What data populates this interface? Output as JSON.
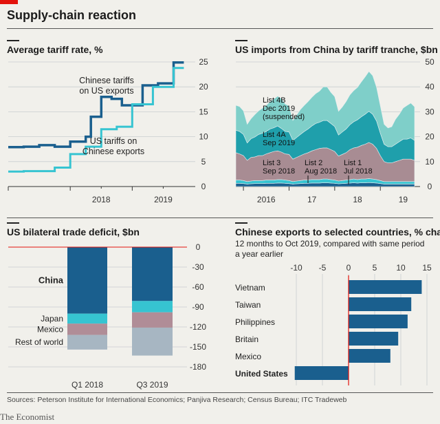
{
  "title": "Supply-chain reaction",
  "source": "Sources: Peterson Institute for International Economics; Panjiva Research; Census Bureau; ITC Tradeweb",
  "brand": "The Economist",
  "chart_data": [
    {
      "type": "line",
      "title": "Average tariff rate, %",
      "x_ticks": [
        "2018",
        "2019"
      ],
      "ylim": [
        0,
        25
      ],
      "y_ticks": [
        0,
        5,
        10,
        15,
        20,
        25
      ],
      "y_axis_side": "right",
      "grid": true,
      "annotations": [
        "Chinese tariffs on US exports",
        "US tariffs on Chinese exports"
      ],
      "series": [
        {
          "label": "Chinese tariffs on US exports",
          "color": "#1a5f8e",
          "x": [
            "2017-01-01",
            "2017-04-01",
            "2017-04-01",
            "2017-07-01",
            "2017-07-01",
            "2017-10-01",
            "2017-10-01",
            "2018-01-01",
            "2018-01-01",
            "2018-04-01",
            "2018-04-01",
            "2018-05-01",
            "2018-05-01",
            "2018-07-01",
            "2018-07-01",
            "2018-09-01",
            "2018-09-01",
            "2018-11-01",
            "2018-11-01",
            "2019-01-01",
            "2019-01-01",
            "2019-03-01",
            "2019-03-01",
            "2019-06-01",
            "2019-06-01",
            "2019-09-01",
            "2019-09-01",
            "2019-10-31"
          ],
          "y": [
            7.9,
            7.9,
            8.0,
            8.0,
            8.3,
            8.3,
            8.0,
            8.0,
            9.0,
            9.0,
            10.0,
            10.0,
            14.0,
            14.0,
            18.0,
            18.0,
            17.6,
            17.6,
            16.3,
            16.3,
            16.3,
            16.3,
            20.3,
            20.3,
            20.7,
            20.7,
            24.9,
            24.9
          ]
        },
        {
          "label": "US tariffs on Chinese exports",
          "color": "#36c4d1",
          "x": [
            "2017-01-01",
            "2017-04-01",
            "2017-04-01",
            "2017-10-01",
            "2017-10-01",
            "2018-01-01",
            "2018-01-01",
            "2018-04-01",
            "2018-04-01",
            "2018-07-01",
            "2018-07-01",
            "2018-10-01",
            "2018-10-01",
            "2019-01-01",
            "2019-01-01",
            "2019-05-01",
            "2019-05-01",
            "2019-09-01",
            "2019-09-01",
            "2019-10-31"
          ],
          "y": [
            3.0,
            3.0,
            3.1,
            3.1,
            3.8,
            3.8,
            6.5,
            6.5,
            8.0,
            8.0,
            11.5,
            11.5,
            12.0,
            12.0,
            16.5,
            16.5,
            20.0,
            20.0,
            23.8,
            23.8
          ]
        }
      ]
    },
    {
      "type": "area",
      "title": "US imports from China by tariff tranche, $bn",
      "x_ticks": [
        "2016",
        "17",
        "18",
        "19"
      ],
      "ylim": [
        0,
        50
      ],
      "y_ticks": [
        0,
        10,
        20,
        30,
        40,
        50
      ],
      "y_axis_side": "right",
      "grid": true,
      "x": [
        "2015-11",
        "2015-12",
        "2016-01",
        "2016-02",
        "2016-03",
        "2016-04",
        "2016-05",
        "2016-06",
        "2016-07",
        "2016-08",
        "2016-09",
        "2016-10",
        "2016-11",
        "2016-12",
        "2017-01",
        "2017-02",
        "2017-03",
        "2017-04",
        "2017-05",
        "2017-06",
        "2017-07",
        "2017-08",
        "2017-09",
        "2017-10",
        "2017-11",
        "2017-12",
        "2018-01",
        "2018-02",
        "2018-03",
        "2018-04",
        "2018-05",
        "2018-06",
        "2018-07",
        "2018-08",
        "2018-09",
        "2018-10",
        "2018-11",
        "2018-12",
        "2019-01",
        "2019-02",
        "2019-03",
        "2019-04",
        "2019-05",
        "2019-06",
        "2019-07",
        "2019-08",
        "2019-09",
        "2019-10"
      ],
      "series": [
        {
          "label": "List 1 Jul 2018",
          "color": "#1a5f8e",
          "values": [
            1.3,
            1.3,
            1.2,
            1.0,
            1.1,
            1.2,
            1.2,
            1.2,
            1.3,
            1.3,
            1.3,
            1.4,
            1.4,
            1.3,
            1.2,
            1.0,
            1.1,
            1.2,
            1.3,
            1.3,
            1.4,
            1.4,
            1.4,
            1.5,
            1.5,
            1.4,
            1.3,
            1.1,
            1.2,
            1.3,
            1.4,
            1.5,
            1.4,
            1.5,
            1.5,
            1.6,
            1.5,
            1.4,
            1.2,
            1.0,
            1.0,
            1.0,
            1.0,
            1.0,
            1.0,
            1.0,
            1.0,
            1.0
          ]
        },
        {
          "label": "List 2 Aug 2018",
          "color": "#36c4d1",
          "values": [
            1.3,
            1.3,
            1.2,
            1.0,
            1.1,
            1.2,
            1.2,
            1.2,
            1.3,
            1.3,
            1.3,
            1.4,
            1.4,
            1.3,
            1.2,
            1.0,
            1.1,
            1.2,
            1.3,
            1.3,
            1.4,
            1.4,
            1.4,
            1.5,
            1.5,
            1.4,
            1.3,
            1.1,
            1.2,
            1.3,
            1.4,
            1.5,
            1.4,
            1.5,
            1.5,
            1.6,
            1.5,
            1.4,
            1.2,
            1.0,
            1.0,
            1.0,
            1.0,
            1.0,
            1.0,
            1.0,
            1.0,
            1.0
          ]
        },
        {
          "label": "List 3 Sep 2018",
          "color": "#a88c93",
          "values": [
            11.0,
            10.5,
            10.0,
            8.5,
            9.5,
            9.5,
            10.0,
            10.0,
            10.5,
            11.0,
            11.5,
            11.5,
            11.0,
            10.5,
            10.5,
            9.0,
            9.5,
            10.0,
            10.5,
            11.0,
            11.5,
            12.0,
            12.5,
            12.5,
            12.5,
            12.0,
            11.5,
            10.0,
            10.5,
            11.0,
            12.0,
            12.5,
            13.0,
            13.5,
            14.0,
            14.5,
            14.0,
            12.5,
            10.0,
            8.0,
            7.5,
            7.5,
            8.0,
            8.5,
            9.0,
            9.0,
            9.0,
            8.5
          ]
        },
        {
          "label": "List 4A Sep 2019",
          "color": "#1f9fab",
          "values": [
            9.0,
            9.0,
            8.5,
            7.0,
            7.5,
            8.0,
            8.5,
            9.0,
            9.0,
            9.5,
            9.5,
            10.0,
            9.5,
            9.0,
            9.0,
            7.5,
            8.0,
            8.5,
            9.0,
            9.5,
            10.0,
            10.5,
            10.5,
            11.0,
            11.0,
            10.5,
            10.0,
            8.5,
            9.0,
            9.5,
            10.0,
            10.5,
            11.0,
            11.5,
            12.0,
            12.5,
            12.0,
            11.0,
            9.0,
            7.0,
            6.5,
            6.5,
            7.0,
            7.5,
            8.0,
            8.0,
            8.5,
            8.0
          ]
        },
        {
          "label": "List 4B Dec 2019 (suspended)",
          "color": "#7fcfc9",
          "values": [
            10.0,
            10.0,
            9.5,
            7.5,
            8.0,
            9.0,
            9.5,
            10.0,
            10.5,
            11.0,
            11.5,
            12.0,
            12.0,
            11.0,
            10.5,
            8.0,
            9.0,
            10.0,
            10.5,
            11.0,
            11.5,
            12.0,
            12.5,
            13.5,
            13.5,
            12.5,
            12.0,
            9.5,
            10.0,
            11.0,
            12.0,
            12.5,
            13.0,
            14.0,
            15.0,
            16.0,
            15.5,
            13.5,
            11.0,
            8.0,
            7.5,
            8.0,
            10.0,
            11.0,
            12.5,
            13.5,
            14.0,
            13.5
          ]
        }
      ],
      "labels": [
        {
          "list": "List 4B",
          "date": "Dec 2019",
          "extra": "(suspended)"
        },
        {
          "list": "List 4A",
          "date": "Sep 2019"
        },
        {
          "list": "List 3",
          "date": "Sep 2018"
        },
        {
          "list": "List 2",
          "date": "Aug 2018"
        },
        {
          "list": "List 1",
          "date": "Jul 2018"
        }
      ]
    },
    {
      "type": "bar",
      "stacked": true,
      "title": "US bilateral trade deficit, $bn",
      "categories": [
        "Q1 2018",
        "Q3 2019"
      ],
      "ylim": [
        -180,
        0
      ],
      "y_ticks": [
        0,
        -30,
        -60,
        -90,
        -120,
        -150,
        -180
      ],
      "y_axis_side": "right",
      "series": [
        {
          "name": "China",
          "color": "#1a5f8e",
          "values": [
            -100,
            -81
          ]
        },
        {
          "name": "Japan",
          "color": "#36c4d1",
          "values": [
            -15,
            -17
          ]
        },
        {
          "name": "Mexico",
          "color": "#b08d97",
          "values": [
            -17,
            -23
          ]
        },
        {
          "name": "Rest of world",
          "color": "#a7b6c2",
          "values": [
            -22,
            -42
          ]
        }
      ]
    },
    {
      "type": "bar",
      "orientation": "horizontal",
      "title": "Chinese exports to selected countries, % change",
      "subtitle": "12 months to Oct 2019, compared with same period a year earlier",
      "categories": [
        "Vietnam",
        "Taiwan",
        "Philippines",
        "Britain",
        "Mexico",
        "United States"
      ],
      "values": [
        14,
        12,
        11.3,
        9.5,
        8,
        -10.3
      ],
      "xlim": [
        -10,
        15
      ],
      "x_ticks": [
        -10,
        -5,
        0,
        5,
        10,
        15
      ],
      "x_axis_side": "top",
      "color": "#1a5f8e"
    }
  ]
}
